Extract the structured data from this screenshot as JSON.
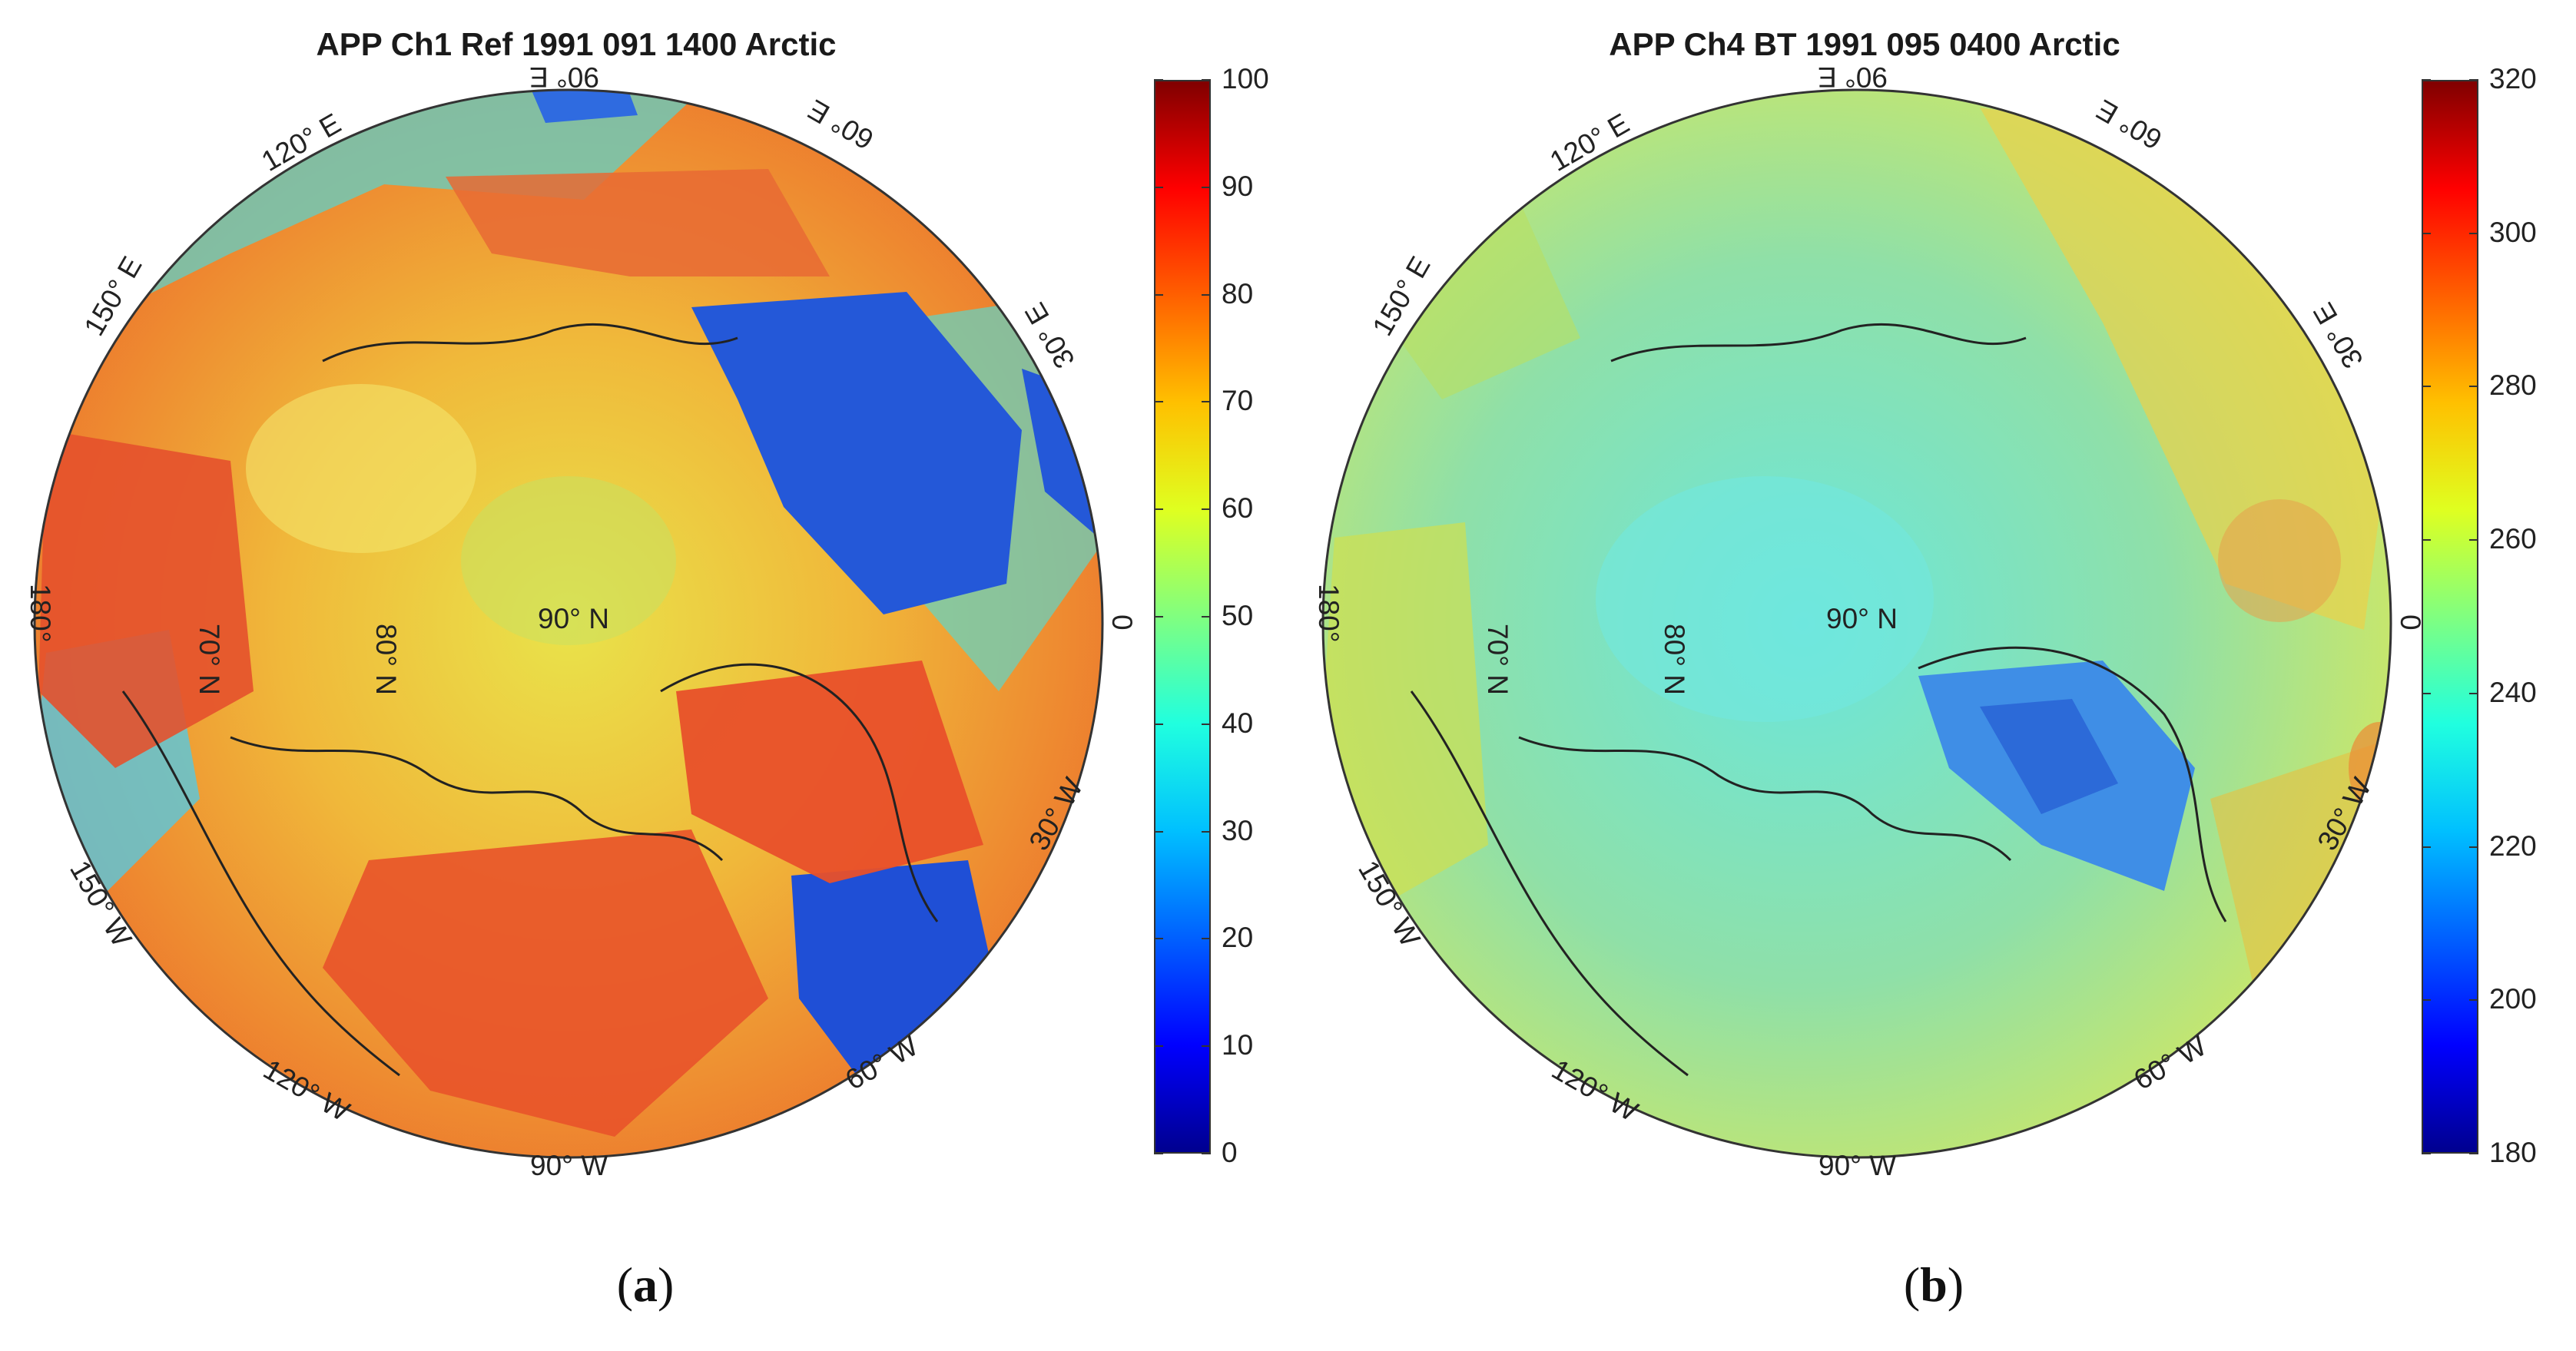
{
  "panels": [
    {
      "id": "a",
      "title": "APP Ch1 Ref 1991 091 1400 Arctic",
      "sublabel_open": "(",
      "sublabel_letter": "a",
      "sublabel_close": ")",
      "center_label": "90° N",
      "lat_labels": [
        "70° N",
        "80° N"
      ],
      "lon_labels": [
        "90° E",
        "60° E",
        "30° E",
        "0",
        "30° W",
        "60° W",
        "90° W",
        "120° W",
        "150° W",
        "180°",
        "150° E",
        "120° E"
      ],
      "colorbar": {
        "min": 0,
        "max": 100,
        "ticks": [
          "0",
          "10",
          "20",
          "30",
          "40",
          "50",
          "60",
          "70",
          "80",
          "90",
          "100"
        ]
      },
      "palette": {
        "ocean_ice": "#f2c63a",
        "land": "#e8502a",
        "open_water": "#2458d8",
        "cloud": "#5fd6c8",
        "accent": "#f7e84a"
      }
    },
    {
      "id": "b",
      "title": "APP Ch4 BT 1991 095 0400 Arctic",
      "sublabel_open": "(",
      "sublabel_letter": "b",
      "sublabel_close": ")",
      "center_label": "90° N",
      "lat_labels": [
        "70° N",
        "80° N"
      ],
      "lon_labels": [
        "90° E",
        "60° E",
        "30° E",
        "0",
        "30° W",
        "60° W",
        "90° W",
        "120° W",
        "150° W",
        "180°",
        "150° E",
        "120° E"
      ],
      "colorbar": {
        "min": 180,
        "max": 320,
        "ticks": [
          "180",
          "200",
          "220",
          "240",
          "260",
          "280",
          "300",
          "320"
        ]
      },
      "palette": {
        "ocean_ice": "#72e2d4",
        "land": "#cfe85a",
        "open_water": "#f0c040",
        "cloud": "#8fe4c8",
        "accent": "#4a90e8"
      }
    }
  ],
  "jet_colors": [
    "#00008f",
    "#0000ff",
    "#0060ff",
    "#00c0ff",
    "#20ffdf",
    "#80ff80",
    "#dfff20",
    "#ffc000",
    "#ff6000",
    "#ff0000",
    "#800000"
  ]
}
